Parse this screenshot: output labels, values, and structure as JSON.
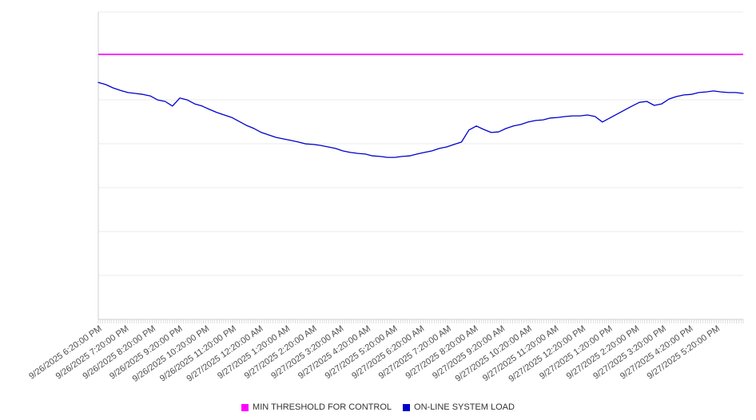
{
  "chart_data": {
    "type": "line",
    "title": "",
    "xlabel": "",
    "ylabel": "",
    "ylim": [
      0,
      100
    ],
    "grid": true,
    "legend_position": "bottom",
    "gridline_values": [
      0,
      14.29,
      28.57,
      42.86,
      57.14,
      71.43,
      85.71,
      100
    ],
    "minor_tick_count": 288,
    "x_labels": [
      "9/26/2025 6:20:00 PM",
      "9/26/2025 7:20:00 PM",
      "9/26/2025 8:20:00 PM",
      "9/26/2025 9:20:00 PM",
      "9/26/2025 10:20:00 PM",
      "9/26/2025 11:20:00 PM",
      "9/27/2025 12:20:00 AM",
      "9/27/2025 1:20:00 AM",
      "9/27/2025 2:20:00 AM",
      "9/27/2025 3:20:00 AM",
      "9/27/2025 4:20:00 AM",
      "9/27/2025 5:20:00 AM",
      "9/27/2025 6:20:00 AM",
      "9/27/2025 7:20:00 AM",
      "9/27/2025 8:20:00 AM",
      "9/27/2025 9:20:00 AM",
      "9/27/2025 10:20:00 AM",
      "9/27/2025 11:20:00 AM",
      "9/27/2025 12:20:00 PM",
      "9/27/2025 1:20:00 PM",
      "9/27/2025 2:20:00 PM",
      "9/27/2025 3:20:00 PM",
      "9/27/2025 4:20:00 PM",
      "9/27/2025 5:20:00 PM"
    ],
    "series": [
      {
        "name": "MIN THRESHOLD FOR CONTROL",
        "color": "#ff00ff",
        "style": "constant-horizontal-line",
        "value": 86.2
      },
      {
        "name": "ON-LINE SYSTEM LOAD",
        "color": "#0000cc",
        "style": "line",
        "values": [
          77.1,
          76.4,
          75.3,
          74.5,
          73.8,
          73.5,
          73.2,
          72.7,
          71.4,
          70.9,
          69.4,
          72.0,
          71.4,
          70.1,
          69.4,
          68.3,
          67.3,
          66.5,
          65.7,
          64.4,
          63.1,
          62.1,
          60.8,
          60.0,
          59.2,
          58.7,
          58.2,
          57.7,
          57.1,
          56.9,
          56.6,
          56.1,
          55.6,
          54.8,
          54.3,
          54.0,
          53.8,
          53.2,
          53.0,
          52.7,
          52.7,
          53.0,
          53.2,
          53.8,
          54.3,
          54.8,
          55.6,
          56.1,
          56.9,
          57.7,
          61.6,
          62.9,
          61.8,
          60.8,
          61.0,
          62.1,
          62.9,
          63.4,
          64.2,
          64.7,
          64.9,
          65.5,
          65.7,
          66.0,
          66.2,
          66.2,
          66.5,
          66.0,
          64.2,
          65.5,
          66.8,
          68.1,
          69.4,
          70.6,
          70.9,
          69.6,
          70.1,
          71.7,
          72.5,
          73.0,
          73.2,
          73.8,
          74.0,
          74.3,
          74.0,
          73.8,
          73.8,
          73.5
        ]
      }
    ]
  },
  "legend": {
    "items": [
      {
        "label": "MIN THRESHOLD FOR CONTROL",
        "color": "#ff00ff"
      },
      {
        "label": "ON-LINE SYSTEM LOAD",
        "color": "#0000cc"
      }
    ]
  }
}
